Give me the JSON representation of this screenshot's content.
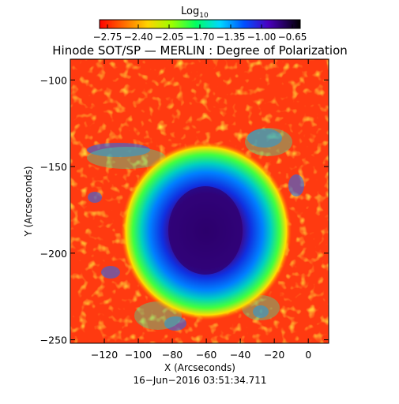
{
  "colorbar": {
    "label_main": "Log",
    "label_sub": "10",
    "ticks": [
      "−2.75",
      "−2.40",
      "−2.05",
      "−1.70",
      "−1.35",
      "−1.00",
      "−0.65"
    ]
  },
  "title": "Hinode SOT/SP — MERLIN : Degree of Polarization",
  "x_axis": {
    "label": "X (Arcseconds)",
    "ticks": [
      -120,
      -100,
      -80,
      -60,
      -40,
      -20,
      0
    ],
    "tick_labels": [
      "−120",
      "−100",
      "−80",
      "−60",
      "−40",
      "−20",
      "0"
    ],
    "range": [
      -140,
      12
    ]
  },
  "y_axis": {
    "label": "Y (Arcseconds)",
    "ticks": [
      -100,
      -150,
      -200,
      -250
    ],
    "tick_labels": [
      "−100",
      "−150",
      "−200",
      "−250"
    ],
    "range": [
      -252,
      -88
    ]
  },
  "timestamp": "16−Jun−2016 03:51:34.711",
  "colors": {
    "background_field": "#ff3a10",
    "umbra": "#3a0080"
  }
}
